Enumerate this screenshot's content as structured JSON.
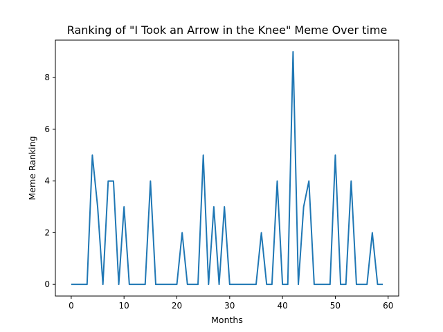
{
  "chart_data": {
    "type": "line",
    "title": "Ranking of \"I Took an Arrow in the Knee\" Meme Over time",
    "xlabel": "Months",
    "ylabel": "Meme Ranking",
    "xlim": [
      -3,
      62
    ],
    "ylim": [
      -0.45,
      9.45
    ],
    "xticks": [
      0,
      10,
      20,
      30,
      40,
      50,
      60
    ],
    "yticks": [
      0,
      2,
      4,
      6,
      8
    ],
    "grid": false,
    "line_color": "#1f77b4",
    "series": [
      {
        "x": [
          0,
          1,
          2,
          3,
          4,
          5,
          6,
          7,
          8,
          9,
          10,
          11,
          12,
          13,
          14,
          15,
          16,
          17,
          18,
          19,
          20,
          21,
          22,
          23,
          24,
          25,
          26,
          27,
          28,
          29,
          30,
          31,
          32,
          33,
          34,
          35,
          36,
          37,
          38,
          39,
          40,
          41,
          42,
          43,
          44,
          45,
          46,
          47,
          48,
          49,
          50,
          51,
          52,
          53,
          54,
          55,
          56,
          57,
          58,
          59
        ],
        "values": [
          0,
          0,
          0,
          0,
          5,
          3,
          0,
          4,
          4,
          0,
          3,
          0,
          0,
          0,
          0,
          4,
          0,
          0,
          0,
          0,
          0,
          2,
          0,
          0,
          0,
          5,
          0,
          3,
          0,
          3,
          0,
          0,
          0,
          0,
          0,
          0,
          2,
          0,
          0,
          4,
          0,
          0,
          9,
          0,
          3,
          4,
          0,
          0,
          0,
          0,
          5,
          0,
          0,
          4,
          0,
          0,
          0,
          2,
          0,
          0
        ]
      }
    ]
  }
}
